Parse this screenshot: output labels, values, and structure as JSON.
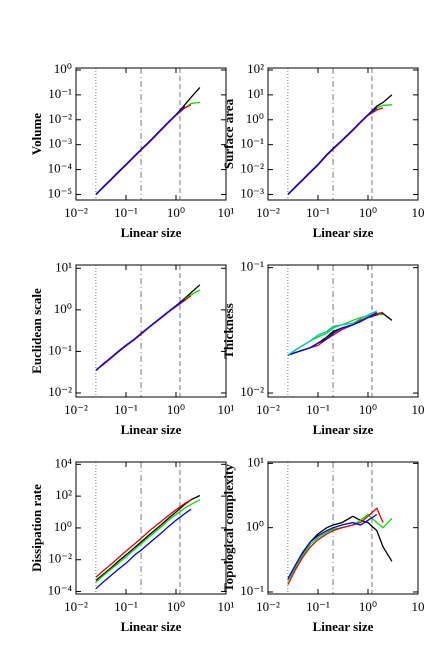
{
  "chart_data": [
    {
      "type": "line",
      "ylabel": "Volume",
      "xlabel": "Linear size",
      "log": true,
      "x": [
        0.025,
        0.035,
        0.05,
        0.07,
        0.1,
        0.15,
        0.2,
        0.3,
        0.5,
        0.7,
        1,
        1.5,
        2,
        3
      ],
      "xlim": [
        0.01,
        10
      ],
      "xticks": [
        {
          "value": 0.01,
          "label": "10⁻²"
        },
        {
          "value": 0.1,
          "label": "10⁻¹"
        },
        {
          "value": 1,
          "label": "10⁰"
        },
        {
          "value": 10,
          "label": "10¹"
        }
      ],
      "ylim": [
        6e-06,
        1.2
      ],
      "yticks": [
        {
          "value": 1e-05,
          "label": "10⁻⁵"
        },
        {
          "value": 0.0001,
          "label": "10⁻⁴"
        },
        {
          "value": 0.001,
          "label": "10⁻³"
        },
        {
          "value": 0.01,
          "label": "10⁻²"
        },
        {
          "value": 0.1,
          "label": "10⁻¹"
        },
        {
          "value": 1,
          "label": "10⁰"
        }
      ],
      "vlines": [
        0.025,
        0.2,
        1.2
      ],
      "series": [
        {
          "color": "#000000",
          "values": [
            1e-05,
            2e-05,
            4e-05,
            8e-05,
            0.00016,
            0.00036,
            0.00064,
            0.0014,
            0.004,
            0.008,
            0.016,
            0.04,
            0.08,
            0.2
          ]
        },
        {
          "color": "#00e000",
          "values": [
            1e-05,
            2e-05,
            4e-05,
            8e-05,
            0.00016,
            0.00036,
            0.00064,
            0.0014,
            0.004,
            0.008,
            0.016,
            0.03,
            0.045,
            0.05
          ]
        },
        {
          "color": "#e00000",
          "values": [
            1e-05,
            1.9e-05,
            3.8e-05,
            7.5e-05,
            0.00015,
            0.00034,
            0.0006,
            0.0013,
            0.0037,
            0.0075,
            0.015,
            0.03,
            0.04,
            null
          ]
        },
        {
          "color": "#0000e0",
          "values": [
            1e-05,
            2e-05,
            4e-05,
            8e-05,
            0.00016,
            0.00036,
            0.00064,
            0.0014,
            0.004,
            0.008,
            0.016,
            0.035,
            null,
            null
          ]
        }
      ]
    },
    {
      "type": "line",
      "ylabel": "Surface area",
      "xlabel": "Linear size",
      "log": true,
      "x": [
        0.025,
        0.035,
        0.05,
        0.07,
        0.1,
        0.15,
        0.2,
        0.3,
        0.5,
        0.7,
        1,
        1.5,
        2,
        3
      ],
      "xlim": [
        0.01,
        10
      ],
      "xticks": [
        {
          "value": 0.01,
          "label": "10⁻²"
        },
        {
          "value": 0.1,
          "label": "10⁻¹"
        },
        {
          "value": 1,
          "label": "10⁰"
        },
        {
          "value": 10,
          "label": "10"
        }
      ],
      "ylim": [
        0.0006,
        120
      ],
      "yticks": [
        {
          "value": 0.001,
          "label": "10⁻³"
        },
        {
          "value": 0.01,
          "label": "10⁻²"
        },
        {
          "value": 0.1,
          "label": "10⁻¹"
        },
        {
          "value": 1,
          "label": "10⁰"
        },
        {
          "value": 10,
          "label": "10¹"
        },
        {
          "value": 100,
          "label": "10²"
        }
      ],
      "vlines": [
        0.025,
        0.2,
        1.2
      ],
      "series": [
        {
          "color": "#000000",
          "values": [
            0.001,
            0.002,
            0.004,
            0.008,
            0.016,
            0.04,
            0.07,
            0.15,
            0.4,
            0.8,
            1.6,
            3.5,
            5,
            10
          ]
        },
        {
          "color": "#00e000",
          "values": [
            0.001,
            0.002,
            0.004,
            0.008,
            0.016,
            0.04,
            0.07,
            0.15,
            0.4,
            0.8,
            1.6,
            3,
            3.8,
            4
          ]
        },
        {
          "color": "#e00000",
          "values": [
            0.001,
            0.0019,
            0.0038,
            0.0075,
            0.015,
            0.037,
            0.065,
            0.14,
            0.37,
            0.75,
            1.5,
            2.5,
            3,
            null
          ]
        },
        {
          "color": "#0000e0",
          "values": [
            0.001,
            0.002,
            0.004,
            0.008,
            0.016,
            0.04,
            0.07,
            0.15,
            0.4,
            0.8,
            1.6,
            3,
            null,
            null
          ]
        }
      ]
    },
    {
      "type": "line",
      "ylabel": "Euclidean scale",
      "xlabel": "Linear size",
      "log": true,
      "x": [
        0.025,
        0.035,
        0.05,
        0.07,
        0.1,
        0.15,
        0.2,
        0.3,
        0.5,
        0.7,
        1,
        1.5,
        2,
        3
      ],
      "xlim": [
        0.01,
        10
      ],
      "xticks": [
        {
          "value": 0.01,
          "label": "10⁻²"
        },
        {
          "value": 0.1,
          "label": "10⁻¹"
        },
        {
          "value": 1,
          "label": "10⁰"
        },
        {
          "value": 10,
          "label": "10¹"
        }
      ],
      "ylim": [
        0.008,
        12
      ],
      "yticks": [
        {
          "value": 0.01,
          "label": "10⁻²"
        },
        {
          "value": 0.1,
          "label": "10⁻¹"
        },
        {
          "value": 1,
          "label": "10⁰"
        },
        {
          "value": 10,
          "label": "10¹"
        }
      ],
      "vlines": [
        0.025,
        0.2,
        1.2
      ],
      "series": [
        {
          "color": "#000000",
          "values": [
            0.035,
            0.05,
            0.07,
            0.1,
            0.14,
            0.2,
            0.27,
            0.4,
            0.65,
            0.9,
            1.25,
            1.9,
            2.6,
            4
          ]
        },
        {
          "color": "#00e000",
          "values": [
            0.035,
            0.05,
            0.07,
            0.1,
            0.14,
            0.2,
            0.27,
            0.4,
            0.65,
            0.9,
            1.25,
            1.8,
            2.3,
            3
          ]
        },
        {
          "color": "#e00000",
          "values": [
            0.035,
            0.048,
            0.068,
            0.097,
            0.135,
            0.195,
            0.26,
            0.39,
            0.63,
            0.88,
            1.2,
            1.7,
            2.2,
            null
          ]
        },
        {
          "color": "#0000e0",
          "values": [
            0.035,
            0.05,
            0.07,
            0.1,
            0.14,
            0.2,
            0.27,
            0.4,
            0.65,
            0.9,
            1.25,
            1.8,
            null,
            null
          ]
        }
      ]
    },
    {
      "type": "line",
      "ylabel": "Thickness",
      "xlabel": "Linear size",
      "log": true,
      "x": [
        0.025,
        0.035,
        0.05,
        0.07,
        0.1,
        0.15,
        0.2,
        0.3,
        0.5,
        0.7,
        1,
        1.5,
        2,
        3
      ],
      "xlim": [
        0.01,
        10
      ],
      "xticks": [
        {
          "value": 0.01,
          "label": "10⁻²"
        },
        {
          "value": 0.1,
          "label": "10⁻¹"
        },
        {
          "value": 1,
          "label": "10⁰"
        },
        {
          "value": 10,
          "label": "10"
        }
      ],
      "ylim": [
        0.0093,
        0.105
      ],
      "yticks": [
        {
          "value": 0.01,
          "label": "10⁻²"
        },
        {
          "value": 0.1,
          "label": "10⁻¹"
        }
      ],
      "vlines": [
        0.025,
        0.2,
        1.2
      ],
      "series": [
        {
          "color": "#000000",
          "values": [
            0.02,
            0.021,
            0.022,
            0.023,
            0.025,
            0.028,
            0.031,
            0.033,
            0.035,
            0.038,
            0.04,
            0.042,
            0.043,
            0.038
          ]
        },
        {
          "color": "#00e000",
          "values": [
            0.02,
            0.022,
            0.024,
            0.026,
            0.028,
            0.03,
            0.033,
            0.035,
            0.038,
            0.04,
            0.041,
            0.043,
            0.042,
            null
          ]
        },
        {
          "color": "#e00000",
          "values": [
            0.02,
            0.021,
            0.022,
            0.023,
            0.024,
            0.027,
            0.029,
            0.032,
            0.035,
            0.038,
            0.04,
            0.043,
            0.044,
            null
          ]
        },
        {
          "color": "#0000e0",
          "values": [
            0.02,
            0.021,
            0.022,
            0.023,
            0.025,
            0.027,
            0.03,
            0.033,
            0.035,
            0.037,
            0.04,
            0.044,
            null,
            null
          ]
        },
        {
          "color": "#00c0c0",
          "values": [
            0.02,
            0.022,
            0.024,
            0.026,
            0.029,
            0.031,
            0.034,
            0.035,
            0.036,
            0.039,
            0.042,
            0.045,
            null,
            null
          ]
        }
      ]
    },
    {
      "type": "line",
      "ylabel": "Dissipation rate",
      "xlabel": "Linear size",
      "log": true,
      "x": [
        0.025,
        0.035,
        0.05,
        0.07,
        0.1,
        0.15,
        0.2,
        0.3,
        0.5,
        0.7,
        1,
        1.5,
        2,
        3
      ],
      "xlim": [
        0.01,
        10
      ],
      "xticks": [
        {
          "value": 0.01,
          "label": "10⁻²"
        },
        {
          "value": 0.1,
          "label": "10⁻¹"
        },
        {
          "value": 1,
          "label": "10⁰"
        },
        {
          "value": 10,
          "label": "10¹"
        }
      ],
      "ylim": [
        7e-05,
        14000
      ],
      "yticks": [
        {
          "value": 0.0001,
          "label": "10⁻⁴"
        },
        {
          "value": 0.01,
          "label": "10⁻²"
        },
        {
          "value": 1,
          "label": "10⁰"
        },
        {
          "value": 100,
          "label": "10²"
        },
        {
          "value": 10000,
          "label": "10⁴"
        }
      ],
      "vlines": [
        0.025,
        0.2,
        1.2
      ],
      "series": [
        {
          "color": "#000000",
          "values": [
            0.0005,
            0.0012,
            0.003,
            0.008,
            0.02,
            0.06,
            0.13,
            0.4,
            1.5,
            4,
            10,
            30,
            60,
            110
          ]
        },
        {
          "color": "#00e000",
          "values": [
            0.0004,
            0.001,
            0.0025,
            0.006,
            0.015,
            0.045,
            0.1,
            0.3,
            1.1,
            3,
            7,
            18,
            30,
            60
          ]
        },
        {
          "color": "#e00000",
          "values": [
            0.0008,
            0.002,
            0.005,
            0.013,
            0.035,
            0.1,
            0.22,
            0.7,
            2.5,
            6,
            14,
            35,
            60,
            null
          ]
        },
        {
          "color": "#0000e0",
          "values": [
            0.00015,
            0.0004,
            0.001,
            0.0025,
            0.006,
            0.02,
            0.04,
            0.12,
            0.45,
            1.2,
            3,
            8,
            15,
            null
          ]
        }
      ]
    },
    {
      "type": "line",
      "ylabel": "Topological complexity",
      "xlabel": "Linear size",
      "log": true,
      "x": [
        0.025,
        0.035,
        0.05,
        0.07,
        0.1,
        0.15,
        0.2,
        0.3,
        0.5,
        0.7,
        1,
        1.5,
        2,
        3
      ],
      "xlim": [
        0.01,
        10
      ],
      "xticks": [
        {
          "value": 0.01,
          "label": "10⁻²"
        },
        {
          "value": 0.1,
          "label": "10⁻¹"
        },
        {
          "value": 1,
          "label": "10⁰"
        },
        {
          "value": 10,
          "label": "10"
        }
      ],
      "ylim": [
        0.093,
        10.5
      ],
      "yticks": [
        {
          "value": 0.1,
          "label": "10⁻¹"
        },
        {
          "value": 1,
          "label": "10⁰"
        },
        {
          "value": 10,
          "label": "10¹"
        }
      ],
      "vlines": [
        0.025,
        0.2,
        1.2
      ],
      "series": [
        {
          "color": "#000000",
          "values": [
            0.15,
            0.25,
            0.4,
            0.6,
            0.8,
            1,
            1.1,
            1.2,
            1.5,
            1.3,
            1.2,
            0.9,
            0.5,
            0.3
          ]
        },
        {
          "color": "#00e000",
          "values": [
            0.15,
            0.24,
            0.38,
            0.55,
            0.7,
            0.85,
            0.95,
            1,
            1.1,
            1.3,
            1.6,
            1.2,
            1,
            1.4
          ]
        },
        {
          "color": "#e00000",
          "values": [
            0.13,
            0.22,
            0.35,
            0.5,
            0.65,
            0.8,
            0.9,
            1,
            1.1,
            1.2,
            1.5,
            2,
            1.2,
            null
          ]
        },
        {
          "color": "#0000e0",
          "values": [
            0.16,
            0.26,
            0.42,
            0.6,
            0.75,
            0.9,
            1,
            1.1,
            1.2,
            1.1,
            1.3,
            1.6,
            null,
            null
          ]
        }
      ]
    }
  ]
}
